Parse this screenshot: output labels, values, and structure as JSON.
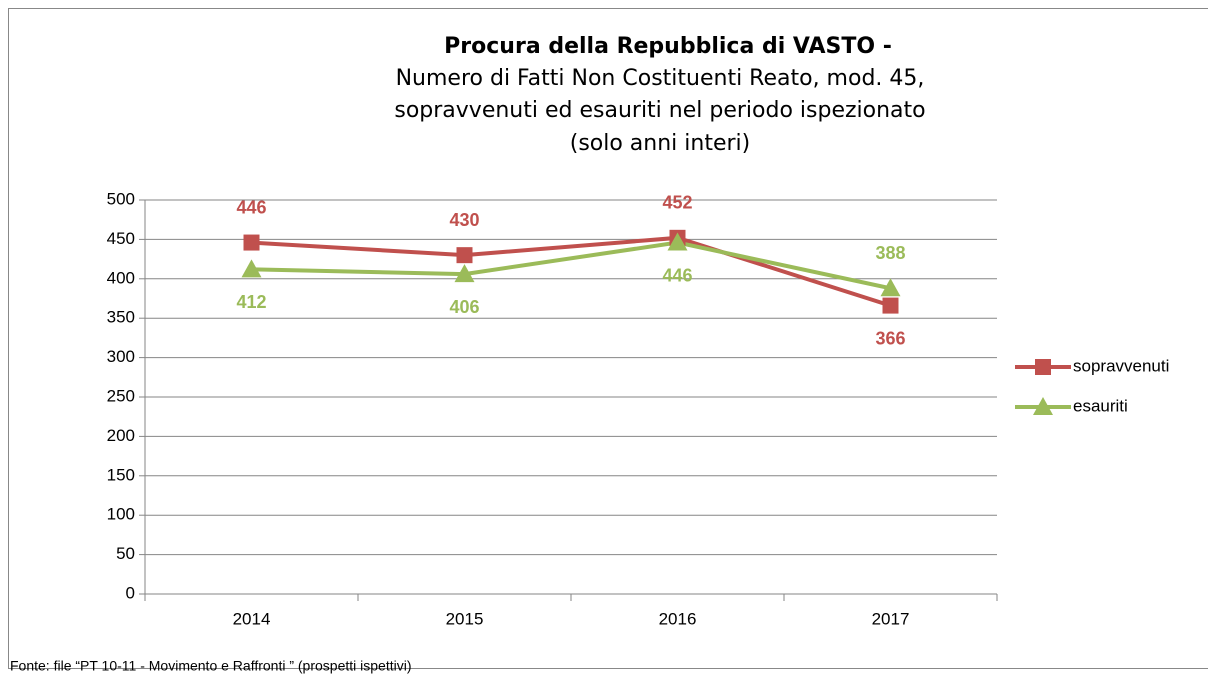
{
  "chart_data": {
    "type": "line",
    "title": "Procura della Repubblica di VASTO -",
    "subtitle": [
      "Numero di Fatti Non Costituenti Reato, mod. 45,",
      "sopravvenuti ed esauriti nel periodo ispezionato",
      "(solo anni interi)"
    ],
    "categories": [
      "2014",
      "2015",
      "2016",
      "2017"
    ],
    "series": [
      {
        "name": "sopravvenuti",
        "color": "#c0504d",
        "marker": "square",
        "values": [
          446,
          430,
          452,
          366
        ]
      },
      {
        "name": "esauriti",
        "color": "#9bbb59",
        "marker": "triangle",
        "values": [
          412,
          406,
          446,
          388
        ]
      }
    ],
    "ylim": [
      0,
      500
    ],
    "yticks": [
      0,
      50,
      100,
      150,
      200,
      250,
      300,
      350,
      400,
      450,
      500
    ],
    "grid": true,
    "legend": "right",
    "source": "Fonte: file “PT 10-11 - Movimento e Raffronti ” (prospetti ispettivi)"
  }
}
